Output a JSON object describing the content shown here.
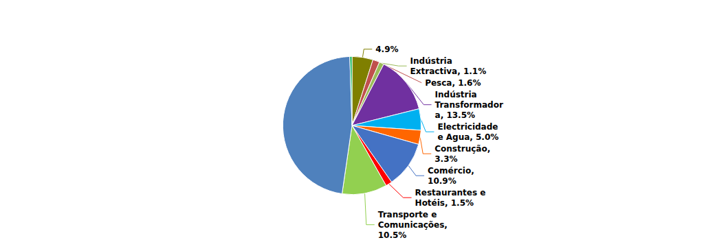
{
  "chart_data": {
    "type": "pie",
    "values": [
      4.9,
      1.6,
      1.1,
      13.5,
      5.0,
      3.3,
      10.9,
      1.5,
      10.5,
      47.2,
      0.5
    ],
    "value_labels": [
      "4.9%",
      "Pesca, 1.6%",
      "Indústria\nExtractiva, 1.1%",
      "Indústria\nTransformador\na, 13.5%",
      "Electricidade\ne Agua, 5.0%",
      "Construção,\n3.3%",
      "Comércio,\n10.9%",
      "Restaurantes e\nHotéis, 1.5%",
      "Transporte e\nComunicações,\n10.5%",
      null,
      null
    ],
    "colors": [
      "#7F7F00",
      "#C0504D",
      "#9BBB59",
      "#7030A0",
      "#00B0F0",
      "#FF6600",
      "#4472C4",
      "#FF0000",
      "#92D050",
      "#4F81BD",
      "#00B050"
    ]
  }
}
